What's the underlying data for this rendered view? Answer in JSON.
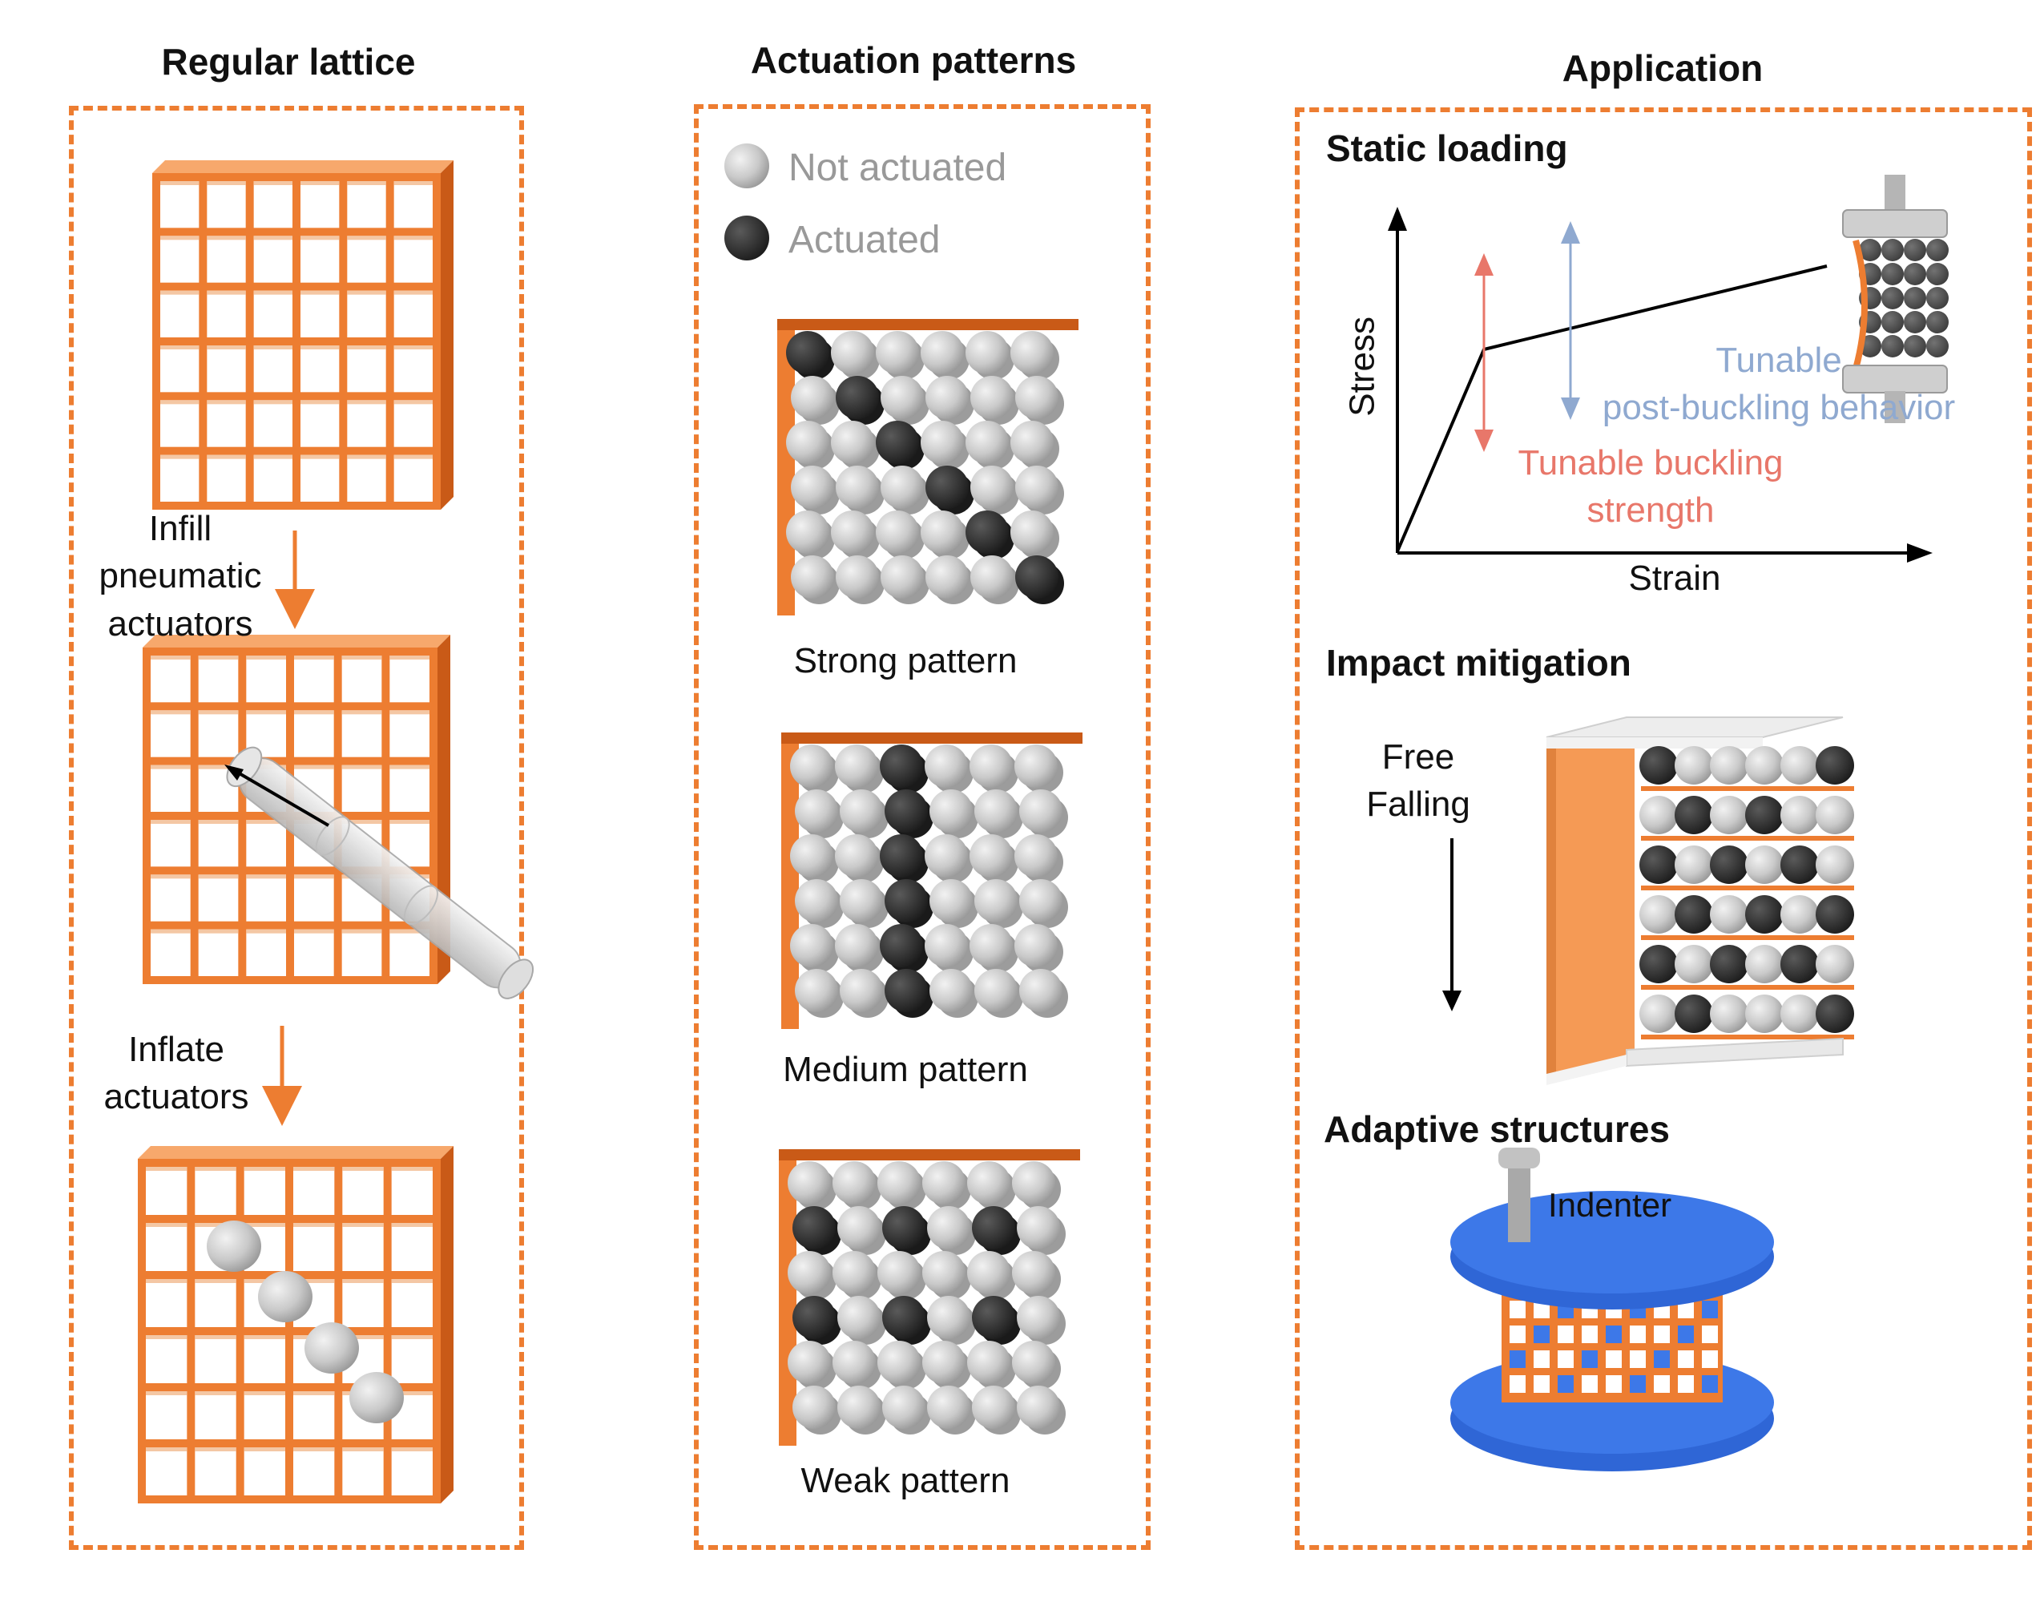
{
  "titles": {
    "regular_lattice": "Regular lattice",
    "actuation_patterns": "Actuation patterns",
    "application": "Application"
  },
  "left": {
    "step1": [
      "Infill",
      "pneumatic",
      "actuators"
    ],
    "step2": [
      "Inflate",
      "actuators"
    ]
  },
  "middle": {
    "legend_not_actuated": "Not actuated",
    "legend_actuated": "Actuated",
    "strong": "Strong pattern",
    "medium": "Medium pattern",
    "weak": "Weak pattern"
  },
  "right": {
    "static_loading": "Static loading",
    "stress": "Stress",
    "strain": "Strain",
    "tunable_post_1": "Tunable",
    "tunable_post_2": "post-buckling behavior",
    "tunable_buckling_1": "Tunable buckling",
    "tunable_buckling_2": "strength",
    "impact_mitigation": "Impact mitigation",
    "free_falling_1": "Free",
    "free_falling_2": "Falling",
    "adaptive_structures": "Adaptive structures",
    "indenter": "Indenter"
  },
  "colors": {
    "orange": "#ed7d31",
    "orange_dark": "#c95a17",
    "gray": "#c8c8c8",
    "dark": "#2e2e2e",
    "red": "#e8776a",
    "blue_text": "#8fa9d0",
    "plate_blue": "#3d78e8"
  },
  "patterns": {
    "strong": [
      [
        1,
        0,
        0,
        0,
        0,
        0
      ],
      [
        0,
        1,
        0,
        0,
        0,
        0
      ],
      [
        0,
        0,
        1,
        0,
        0,
        0
      ],
      [
        0,
        0,
        0,
        1,
        0,
        0
      ],
      [
        0,
        0,
        0,
        0,
        1,
        0
      ],
      [
        0,
        0,
        0,
        0,
        0,
        1
      ]
    ],
    "medium": [
      [
        0,
        0,
        1,
        0,
        0,
        0
      ],
      [
        0,
        0,
        1,
        0,
        0,
        0
      ],
      [
        0,
        0,
        1,
        0,
        0,
        0
      ],
      [
        0,
        0,
        1,
        0,
        0,
        0
      ],
      [
        0,
        0,
        1,
        0,
        0,
        0
      ],
      [
        0,
        0,
        1,
        0,
        0,
        0
      ]
    ],
    "weak": [
      [
        0,
        0,
        0,
        0,
        0,
        0
      ],
      [
        1,
        0,
        1,
        0,
        1,
        0
      ],
      [
        0,
        0,
        0,
        0,
        0,
        0
      ],
      [
        1,
        0,
        1,
        0,
        1,
        0
      ],
      [
        0,
        0,
        0,
        0,
        0,
        0
      ],
      [
        0,
        0,
        0,
        0,
        0,
        0
      ]
    ],
    "impact": [
      [
        1,
        0,
        0,
        0,
        0,
        1
      ],
      [
        0,
        1,
        0,
        1,
        0,
        0
      ],
      [
        1,
        0,
        1,
        0,
        1,
        0
      ],
      [
        0,
        1,
        0,
        1,
        0,
        1
      ],
      [
        1,
        0,
        1,
        0,
        1,
        0
      ],
      [
        0,
        1,
        0,
        0,
        0,
        1
      ]
    ]
  }
}
